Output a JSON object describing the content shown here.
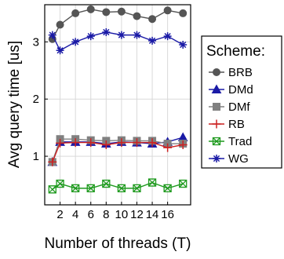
{
  "chart_data": {
    "type": "line",
    "title": "",
    "xlabel": "Number of threads (T)",
    "ylabel": "Avg query time [us]",
    "x": [
      1,
      2,
      4,
      6,
      8,
      10,
      12,
      14,
      16,
      18
    ],
    "xticks": [
      2,
      4,
      6,
      8,
      10,
      12,
      14,
      16
    ],
    "xtick_labels": [
      "2",
      "4",
      "6",
      "8",
      "10",
      "12",
      "14",
      "16"
    ],
    "yticks": [
      1,
      2,
      3
    ],
    "ytick_labels": [
      "1",
      "2",
      "3"
    ],
    "xlim": [
      0,
      19
    ],
    "ylim": [
      0.15,
      3.65
    ],
    "grid": true,
    "legend": {
      "title": "Scheme:",
      "placement": "right"
    },
    "series": [
      {
        "name": "BRB",
        "marker": "circle",
        "color": "#555555",
        "values": [
          3.05,
          3.3,
          3.5,
          3.57,
          3.52,
          3.53,
          3.45,
          3.4,
          3.55,
          3.5
        ]
      },
      {
        "name": "DMd",
        "marker": "triangle",
        "color": "#1a1aa6",
        "values": [
          0.9,
          1.25,
          1.25,
          1.25,
          1.22,
          1.25,
          1.24,
          1.22,
          1.25,
          1.33
        ]
      },
      {
        "name": "DMf",
        "marker": "square",
        "color": "#808080",
        "values": [
          0.9,
          1.3,
          1.3,
          1.28,
          1.27,
          1.28,
          1.27,
          1.27,
          1.22,
          1.22
        ]
      },
      {
        "name": "RB",
        "marker": "plus",
        "color": "#cc2222",
        "values": [
          0.9,
          1.23,
          1.24,
          1.24,
          1.2,
          1.24,
          1.24,
          1.24,
          1.15,
          1.2
        ]
      },
      {
        "name": "Trad",
        "marker": "boxx",
        "color": "#1f9a1f",
        "values": [
          0.42,
          0.52,
          0.44,
          0.44,
          0.52,
          0.44,
          0.44,
          0.54,
          0.44,
          0.52
        ]
      },
      {
        "name": "WG",
        "marker": "asterisk",
        "color": "#1a1aa6",
        "values": [
          3.12,
          2.85,
          3.0,
          3.1,
          3.17,
          3.12,
          3.12,
          3.02,
          3.1,
          2.95
        ]
      }
    ]
  }
}
